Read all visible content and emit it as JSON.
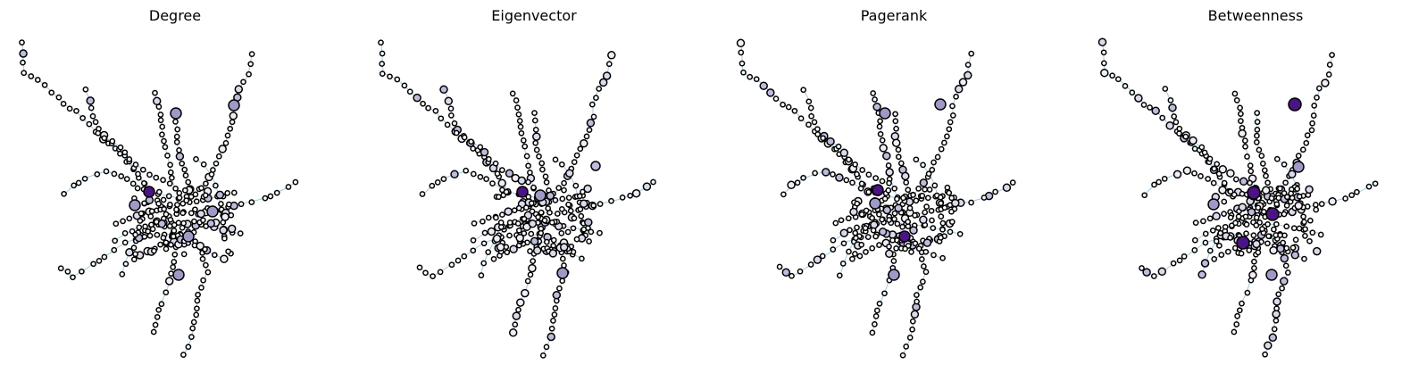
{
  "panels": [
    {
      "title": "Degree",
      "seed": 11,
      "hubs": [
        [
          167,
          215,
          "#4a1486",
          6
        ],
        [
          151,
          230,
          "#9e9ac8",
          6
        ],
        [
          211,
          265,
          "#9e9ac8",
          6
        ],
        [
          200,
          308,
          "#9e9ac8",
          6
        ],
        [
          238,
          237,
          "#9e9ac8",
          6
        ],
        [
          262,
          118,
          "#9e9ac8",
          6
        ],
        [
          197,
          127,
          "#9e9ac8",
          6
        ]
      ]
    },
    {
      "title": "Eigenvector",
      "seed": 23,
      "hubs": [
        [
          183,
          215,
          "#4a1486",
          6
        ],
        [
          203,
          219,
          "#9e9ac8",
          6
        ],
        [
          228,
          306,
          "#9e9ac8",
          6
        ],
        [
          265,
          186,
          "#bcbddc",
          5
        ]
      ]
    },
    {
      "title": "Pagerank",
      "seed": 37,
      "hubs": [
        [
          178,
          213,
          "#4a1486",
          6
        ],
        [
          208,
          265,
          "#4a1486",
          6
        ],
        [
          186,
          127,
          "#9e9ac8",
          6
        ],
        [
          248,
          117,
          "#9e9ac8",
          6
        ],
        [
          175,
          228,
          "#9e9ac8",
          6
        ],
        [
          196,
          308,
          "#9e9ac8",
          6
        ]
      ]
    },
    {
      "title": "Betweenness",
      "seed": 53,
      "hubs": [
        [
          240,
          117,
          "#4a1486",
          7
        ],
        [
          194,
          216,
          "#4a1486",
          7
        ],
        [
          215,
          240,
          "#4a1486",
          7
        ],
        [
          182,
          272,
          "#4a1486",
          7
        ],
        [
          149,
          229,
          "#9e9ac8",
          6
        ],
        [
          214,
          308,
          "#9e9ac8",
          6
        ],
        [
          244,
          187,
          "#9e9ac8",
          6
        ]
      ]
    }
  ]
}
